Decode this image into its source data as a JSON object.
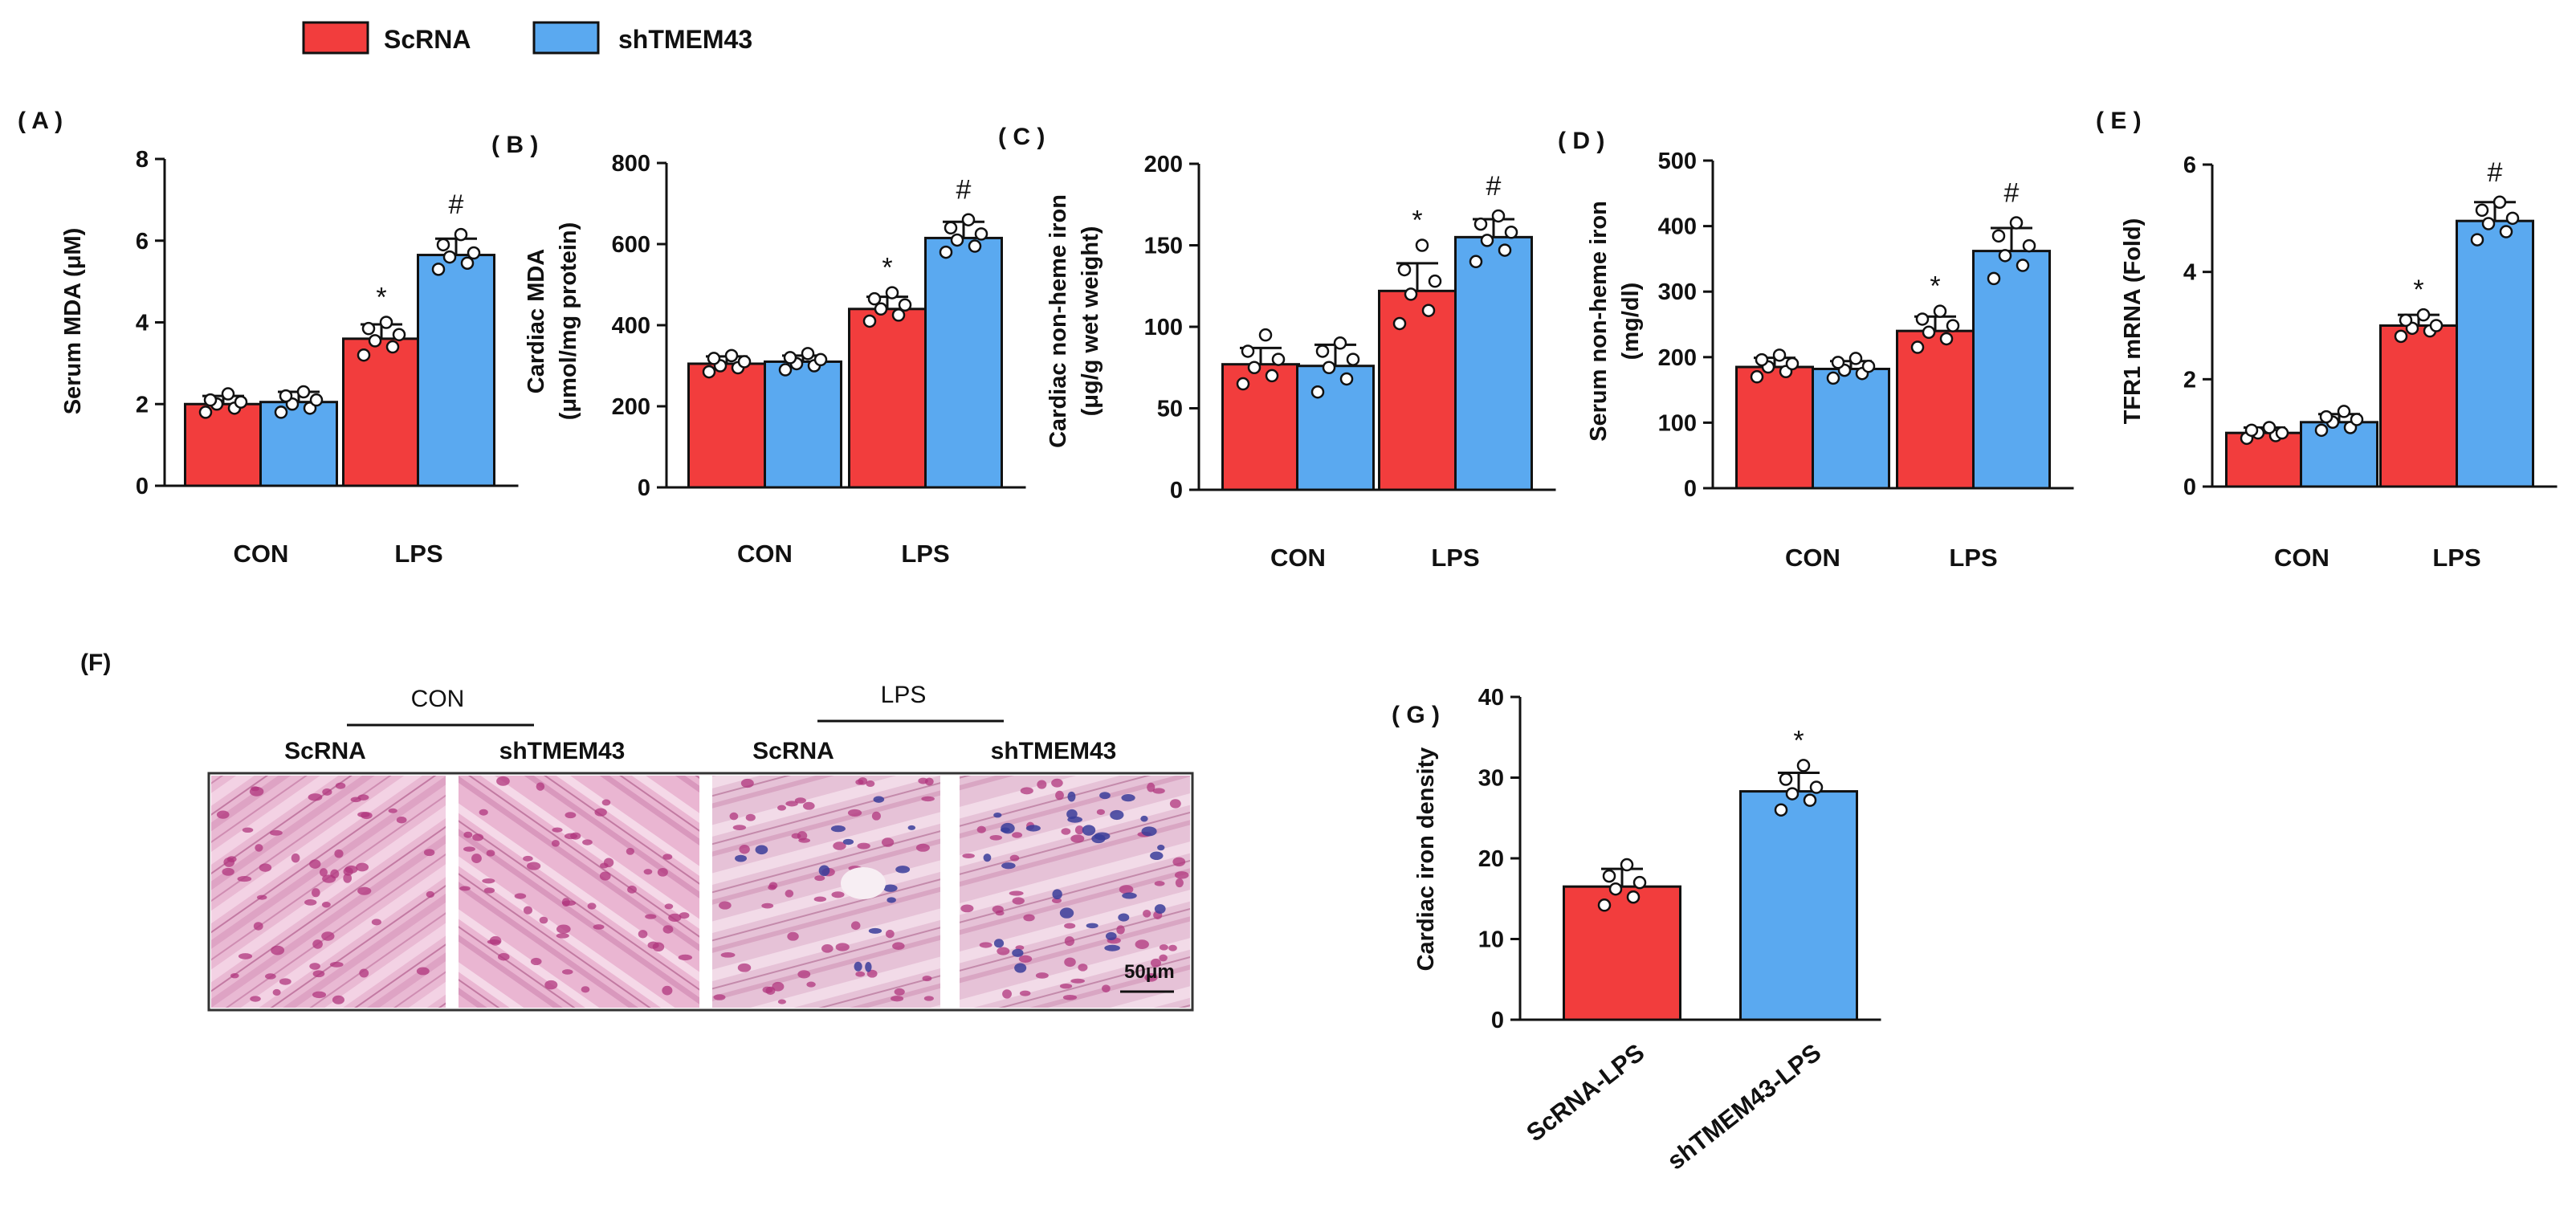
{
  "legend": [
    {
      "label": "ScRNA",
      "color": "#f23d3d"
    },
    {
      "label": "shTMEM43",
      "color": "#5aa9f0"
    }
  ],
  "colors": {
    "scrna": "#f23d3d",
    "shtmem43": "#5aa9f0",
    "axis": "#111111",
    "point": "#ffffff"
  },
  "chart_data": [
    {
      "panel": "( A )",
      "type": "bar",
      "ylabel": "Serum MDA (μM)",
      "ylim": [
        0,
        8
      ],
      "yticks": [
        0,
        2,
        4,
        6,
        8
      ],
      "tick_labels": [
        "0",
        "2",
        "4",
        "6",
        "8"
      ],
      "groups": [
        "CON",
        "LPS"
      ],
      "series": [
        {
          "name": "ScRNA",
          "values": [
            2.0,
            3.6
          ]
        },
        {
          "name": "shTMEM43",
          "values": [
            2.05,
            5.65
          ]
        }
      ],
      "errors": [
        [
          0.2,
          0.35
        ],
        [
          0.25,
          0.4
        ]
      ],
      "points": [
        [
          [
            1.8,
            1.9,
            2.0,
            2.05,
            2.1,
            2.25
          ],
          [
            3.2,
            3.4,
            3.55,
            3.7,
            3.85,
            4.0
          ]
        ],
        [
          [
            1.8,
            1.9,
            2.0,
            2.1,
            2.2,
            2.3
          ],
          [
            5.3,
            5.45,
            5.6,
            5.7,
            5.9,
            6.15
          ]
        ]
      ],
      "annotations": [
        [
          "",
          "*"
        ],
        [
          "",
          "#"
        ]
      ]
    },
    {
      "panel": "( B )",
      "type": "bar",
      "ylabel": [
        "Cardiac MDA",
        "(μmol/mg protein)"
      ],
      "ylim": [
        0,
        800
      ],
      "yticks": [
        0,
        200,
        400,
        600,
        800
      ],
      "tick_labels": [
        "0",
        "200",
        "400",
        "600",
        "800"
      ],
      "groups": [
        "CON",
        "LPS"
      ],
      "series": [
        {
          "name": "ScRNA",
          "values": [
            305,
            440
          ]
        },
        {
          "name": "shTMEM43",
          "values": [
            310,
            615
          ]
        }
      ],
      "errors": [
        [
          18,
          30
        ],
        [
          15,
          40
        ]
      ],
      "points": [
        [
          [
            285,
            295,
            300,
            310,
            318,
            325
          ],
          [
            410,
            425,
            440,
            450,
            465,
            480
          ]
        ],
        [
          [
            290,
            300,
            305,
            315,
            320,
            330
          ],
          [
            580,
            595,
            610,
            625,
            640,
            660
          ]
        ]
      ],
      "annotations": [
        [
          "",
          "*"
        ],
        [
          "",
          "#"
        ]
      ]
    },
    {
      "panel": "( C )",
      "type": "bar",
      "ylabel": [
        "Cardiac non-heme iron",
        "(μg/g wet weight)"
      ],
      "ylim": [
        0,
        200
      ],
      "yticks": [
        0,
        50,
        100,
        150,
        200
      ],
      "tick_labels": [
        "0",
        "50",
        "100",
        "150",
        "200"
      ],
      "groups": [
        "CON",
        "LPS"
      ],
      "series": [
        {
          "name": "ScRNA",
          "values": [
            77,
            122
          ]
        },
        {
          "name": "shTMEM43",
          "values": [
            76,
            155
          ]
        }
      ],
      "errors": [
        [
          10,
          17
        ],
        [
          13,
          11
        ]
      ],
      "points": [
        [
          [
            65,
            70,
            75,
            80,
            85,
            95
          ],
          [
            102,
            110,
            120,
            128,
            135,
            150
          ]
        ],
        [
          [
            60,
            68,
            75,
            80,
            85,
            90
          ],
          [
            140,
            147,
            153,
            158,
            163,
            168
          ]
        ]
      ],
      "annotations": [
        [
          "",
          "*"
        ],
        [
          "",
          "#"
        ]
      ]
    },
    {
      "panel": "( D )",
      "type": "bar",
      "ylabel": [
        "Serum non-heme iron",
        "(mg/dl)"
      ],
      "ylim": [
        0,
        500
      ],
      "yticks": [
        0,
        100,
        200,
        300,
        400,
        500
      ],
      "tick_labels": [
        "0",
        "100",
        "200",
        "300",
        "400",
        "500"
      ],
      "groups": [
        "CON",
        "LPS"
      ],
      "series": [
        {
          "name": "ScRNA",
          "values": [
            185,
            240
          ]
        },
        {
          "name": "shTMEM43",
          "values": [
            182,
            362
          ]
        }
      ],
      "errors": [
        [
          14,
          22
        ],
        [
          12,
          35
        ]
      ],
      "points": [
        [
          [
            170,
            178,
            185,
            190,
            196,
            203
          ],
          [
            215,
            228,
            238,
            248,
            258,
            270
          ]
        ],
        [
          [
            168,
            175,
            180,
            186,
            192,
            198
          ],
          [
            320,
            340,
            355,
            370,
            385,
            405
          ]
        ]
      ],
      "annotations": [
        [
          "",
          "*"
        ],
        [
          "",
          "#"
        ]
      ]
    },
    {
      "panel": "( E )",
      "type": "bar",
      "ylabel": "TFR1 mRNA (Fold)",
      "ylim": [
        0,
        6
      ],
      "yticks": [
        0,
        2,
        4,
        6
      ],
      "tick_labels": [
        "0",
        "2",
        "4",
        "6"
      ],
      "groups": [
        "CON",
        "LPS"
      ],
      "series": [
        {
          "name": "ScRNA",
          "values": [
            1.0,
            3.0
          ]
        },
        {
          "name": "shTMEM43",
          "values": [
            1.2,
            4.95
          ]
        }
      ],
      "errors": [
        [
          0.1,
          0.2
        ],
        [
          0.15,
          0.35
        ]
      ],
      "points": [
        [
          [
            0.9,
            0.95,
            1.0,
            1.0,
            1.05,
            1.1
          ],
          [
            2.8,
            2.9,
            2.95,
            3.0,
            3.1,
            3.2
          ]
        ],
        [
          [
            1.05,
            1.1,
            1.2,
            1.25,
            1.3,
            1.4
          ],
          [
            4.6,
            4.75,
            4.9,
            5.0,
            5.15,
            5.3
          ]
        ]
      ],
      "annotations": [
        [
          "",
          "*"
        ],
        [
          "",
          "#"
        ]
      ]
    },
    {
      "panel": "( G )",
      "type": "bar",
      "ylabel": "Cardiac iron density",
      "ylim": [
        0,
        40
      ],
      "yticks": [
        0,
        10,
        20,
        30,
        40
      ],
      "tick_labels": [
        "0",
        "10",
        "20",
        "30",
        "40"
      ],
      "categories": [
        "ScRNA-LPS",
        "shTMEM43-LPS"
      ],
      "values": [
        16.5,
        28.3
      ],
      "errors": [
        2.2,
        2.3
      ],
      "points": [
        [
          14.2,
          15.2,
          16.2,
          17.0,
          17.8,
          19.2
        ],
        [
          26.0,
          27.2,
          28.0,
          28.8,
          29.8,
          31.5
        ]
      ],
      "annotations": [
        "",
        "*"
      ]
    }
  ],
  "histology": {
    "panel": "(F)",
    "groups": [
      "CON",
      "LPS"
    ],
    "lanes": [
      "ScRNA",
      "shTMEM43",
      "ScRNA",
      "shTMEM43"
    ],
    "scale_bar": "50μm"
  }
}
